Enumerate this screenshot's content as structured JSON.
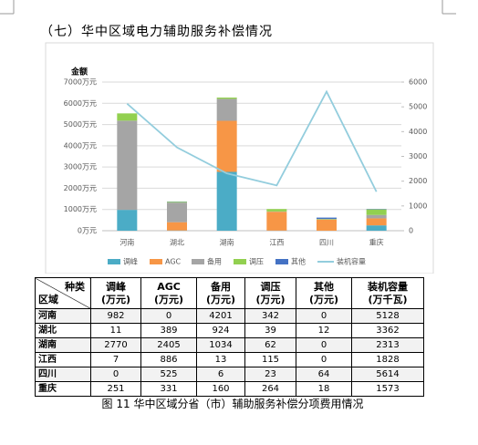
{
  "heading": "（七）华中区域电力辅助服务补偿情况",
  "chart_data": {
    "type": "bar",
    "y_label": "金额",
    "categories": [
      "河南",
      "湖北",
      "湖南",
      "江西",
      "四川",
      "重庆"
    ],
    "series": [
      {
        "name": "调峰",
        "color": "#4bacc6",
        "values": [
          982,
          11,
          2770,
          7,
          0,
          251
        ]
      },
      {
        "name": "AGC",
        "color": "#f79646",
        "values": [
          0,
          389,
          2405,
          886,
          525,
          331
        ]
      },
      {
        "name": "备用",
        "color": "#a5a5a5",
        "values": [
          4201,
          924,
          1034,
          13,
          6,
          160
        ]
      },
      {
        "name": "调压",
        "color": "#92d050",
        "values": [
          342,
          39,
          62,
          115,
          23,
          264
        ]
      },
      {
        "name": "其他",
        "color": "#4472c4",
        "values": [
          0,
          12,
          0,
          0,
          64,
          18
        ]
      },
      {
        "name": "装机容量",
        "color": "#93cddd",
        "axis": "y2",
        "type": "line",
        "values": [
          5128,
          3362,
          2313,
          1828,
          5614,
          1573
        ]
      }
    ],
    "ylim": [
      0,
      7000
    ],
    "yticks": [
      {
        "value": 0,
        "label": "0万元"
      },
      {
        "value": 1000,
        "label": "1000万元"
      },
      {
        "value": 2000,
        "label": "2000万元"
      },
      {
        "value": 3000,
        "label": "3000万元"
      },
      {
        "value": 4000,
        "label": "4000万元"
      },
      {
        "value": 5000,
        "label": "5000万元"
      },
      {
        "value": 6000,
        "label": "6000万元"
      },
      {
        "value": 7000,
        "label": "7000万元"
      }
    ],
    "y2lim": [
      0,
      6000
    ],
    "y2ticks": [
      0,
      1000,
      2000,
      3000,
      4000,
      5000,
      6000
    ],
    "grid": true,
    "legend": "bottom"
  },
  "table": {
    "corner": [
      "种类",
      "区域"
    ],
    "units": [
      "(万元)",
      "(万元)",
      "(万元)",
      "(万元)",
      "(万元)",
      "(万千瓦)"
    ]
  },
  "caption": "图 11 华中区域分省（市）辅助服务补偿分项费用情况"
}
